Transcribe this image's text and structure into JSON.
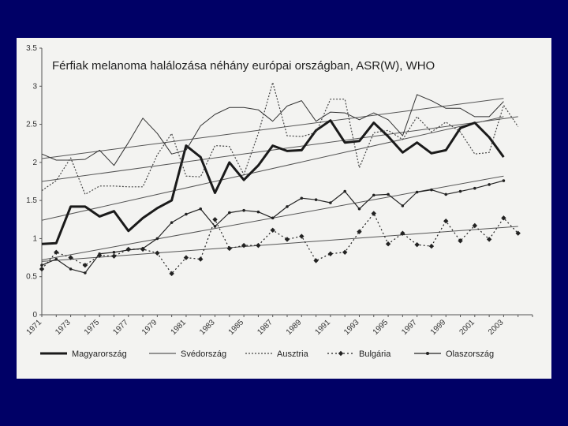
{
  "slide": {
    "background": "#000066",
    "panel_background": "#f3f3f1"
  },
  "chart_data": {
    "type": "line",
    "title": "Férfiak melanoma halálozása néhány európai országban, ASR(W), WHO",
    "xlabel": "",
    "ylabel": "",
    "x": [
      1971,
      1972,
      1973,
      1974,
      1975,
      1976,
      1977,
      1978,
      1979,
      1980,
      1981,
      1982,
      1983,
      1984,
      1985,
      1986,
      1987,
      1988,
      1989,
      1990,
      1991,
      1992,
      1993,
      1994,
      1995,
      1996,
      1997,
      1998,
      1999,
      2000,
      2001,
      2002,
      2003,
      2004
    ],
    "xlim": [
      1971,
      2005
    ],
    "x_tick_labels": [
      "1971",
      "1973",
      "1975",
      "1977",
      "1979",
      "1981",
      "1983",
      "1985",
      "1987",
      "1989",
      "1991",
      "1993",
      "1995",
      "1997",
      "1999",
      "2001",
      "2003"
    ],
    "ylim": [
      0,
      3.5
    ],
    "y_tick_labels": [
      "0",
      "0.5",
      "1",
      "1.5",
      "2",
      "2.5",
      "3",
      "3.5"
    ],
    "grid": false,
    "legend_position": "bottom",
    "trendlines": true,
    "series": [
      {
        "name": "Magyarország",
        "style": "thick",
        "color": "#1a1a1a",
        "values": [
          0.93,
          0.94,
          1.42,
          1.42,
          1.29,
          1.36,
          1.1,
          1.27,
          1.4,
          1.5,
          2.22,
          2.07,
          1.6,
          2.0,
          1.77,
          1.96,
          2.22,
          2.15,
          2.16,
          2.42,
          2.55,
          2.26,
          2.28,
          2.52,
          2.34,
          2.13,
          2.26,
          2.12,
          2.16,
          2.45,
          2.52,
          2.33,
          2.07,
          null
        ],
        "trend": [
          1.24,
          2.6
        ]
      },
      {
        "name": "Svédország",
        "style": "thin",
        "color": "#333333",
        "values": [
          2.11,
          2.03,
          2.03,
          2.04,
          2.16,
          1.96,
          2.26,
          2.58,
          2.38,
          2.11,
          2.16,
          2.48,
          2.63,
          2.72,
          2.72,
          2.69,
          2.54,
          2.74,
          2.81,
          2.54,
          2.66,
          2.65,
          2.56,
          2.65,
          2.56,
          2.35,
          2.89,
          2.81,
          2.71,
          2.71,
          2.6,
          2.6,
          2.8,
          null
        ],
        "trend": [
          2.05,
          2.84
        ]
      },
      {
        "name": "Ausztria",
        "style": "dotted",
        "color": "#444444",
        "values": [
          1.63,
          1.76,
          2.06,
          1.58,
          1.69,
          1.69,
          1.68,
          1.68,
          2.1,
          2.38,
          1.82,
          1.81,
          2.22,
          2.21,
          1.84,
          2.38,
          3.05,
          2.35,
          2.34,
          2.39,
          2.83,
          2.83,
          1.93,
          2.39,
          2.42,
          2.3,
          2.6,
          2.4,
          2.53,
          2.4,
          2.11,
          2.13,
          2.75,
          2.47
        ],
        "trend": [
          1.75,
          2.6
        ]
      },
      {
        "name": "Bulgária",
        "style": "dashed-diamond",
        "color": "#222222",
        "values": [
          0.6,
          0.82,
          0.75,
          0.65,
          0.78,
          0.77,
          0.86,
          0.86,
          0.81,
          0.54,
          0.75,
          0.73,
          1.25,
          0.87,
          0.91,
          0.91,
          1.11,
          0.99,
          1.03,
          0.71,
          0.8,
          0.82,
          1.09,
          1.33,
          0.93,
          1.07,
          0.92,
          0.9,
          1.23,
          0.97,
          1.17,
          0.99,
          1.27,
          1.07
        ],
        "trend": [
          0.7,
          1.16
        ]
      },
      {
        "name": "Olaszország",
        "style": "solid-dot",
        "color": "#222222",
        "values": [
          0.65,
          0.73,
          0.6,
          0.55,
          0.8,
          0.82,
          0.85,
          0.87,
          1.0,
          1.21,
          1.32,
          1.39,
          1.16,
          1.34,
          1.37,
          1.35,
          1.27,
          1.42,
          1.53,
          1.51,
          1.47,
          1.62,
          1.39,
          1.57,
          1.58,
          1.43,
          1.61,
          1.64,
          1.58,
          1.62,
          1.66,
          1.71,
          1.76,
          null
        ],
        "trend": [
          0.72,
          1.82
        ]
      }
    ]
  }
}
